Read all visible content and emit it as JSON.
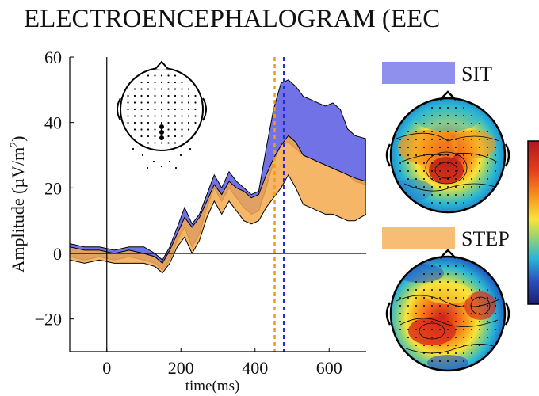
{
  "title": "ELECTROENCEPHALOGRAM (EEC",
  "colors": {
    "sit": "#6a6ae6",
    "step": "#f5a94e",
    "overlap": "#b07a6a",
    "sit_marker": "#2b2bd6",
    "step_marker": "#f29b1a"
  },
  "legend": {
    "sit_label": "SIT",
    "step_label": "STEP"
  },
  "chart_data": {
    "type": "area",
    "title": "",
    "xlabel": "time(ms)",
    "ylabel": "Amplitude (µV/m²)",
    "ylabel_main": "Amplitude (µV/m",
    "ylabel_sup": "2",
    "ylabel_close": ")",
    "xlim": [
      -100,
      700
    ],
    "ylim": [
      -30,
      60
    ],
    "xticks": [
      0,
      200,
      400,
      600
    ],
    "yticks": [
      -20,
      0,
      20,
      40,
      60
    ],
    "grid": false,
    "zero_lines": true,
    "markers_x": {
      "step": 453,
      "sit": 478
    },
    "x": [
      -100,
      -60,
      -20,
      20,
      60,
      100,
      130,
      150,
      170,
      190,
      210,
      230,
      250,
      270,
      290,
      310,
      330,
      350,
      370,
      390,
      410,
      430,
      450,
      470,
      490,
      510,
      530,
      550,
      570,
      590,
      610,
      630,
      650,
      670,
      700
    ],
    "series": [
      {
        "name": "SIT",
        "upper": [
          3,
          2,
          2,
          1,
          2,
          2,
          0,
          -2,
          2,
          8,
          14,
          9,
          12,
          18,
          24,
          20,
          25,
          22,
          20,
          18,
          19,
          32,
          44,
          52,
          53,
          51,
          48,
          47,
          46,
          45,
          46,
          44,
          38,
          36,
          35
        ],
        "lower": [
          -1,
          -2,
          -1,
          -2,
          -1,
          -2,
          -3,
          -5,
          -2,
          4,
          8,
          2,
          6,
          14,
          20,
          16,
          20,
          17,
          14,
          12,
          13,
          20,
          28,
          33,
          34,
          32,
          30,
          29,
          28,
          27,
          26,
          25,
          24,
          22,
          21
        ]
      },
      {
        "name": "STEP",
        "upper": [
          2,
          1,
          1,
          0,
          1,
          0,
          -1,
          -3,
          1,
          6,
          11,
          8,
          11,
          16,
          21,
          18,
          22,
          20,
          19,
          17,
          18,
          24,
          29,
          33,
          36,
          34,
          30,
          29,
          28,
          27,
          26,
          25,
          24,
          23,
          22
        ],
        "lower": [
          -2,
          -3,
          -2,
          -3,
          -3,
          -3,
          -4,
          -6,
          -3,
          2,
          5,
          0,
          4,
          11,
          16,
          12,
          16,
          13,
          10,
          9,
          10,
          14,
          17,
          20,
          24,
          20,
          15,
          14,
          13,
          12,
          12,
          11,
          10,
          10,
          12
        ]
      }
    ]
  },
  "colorbar": {
    "colors": [
      "#b0171f",
      "#e53e1a",
      "#f7941d",
      "#f9e43a",
      "#8fd17a",
      "#29b6d6",
      "#2a4fbf",
      "#1b1f6e"
    ]
  }
}
